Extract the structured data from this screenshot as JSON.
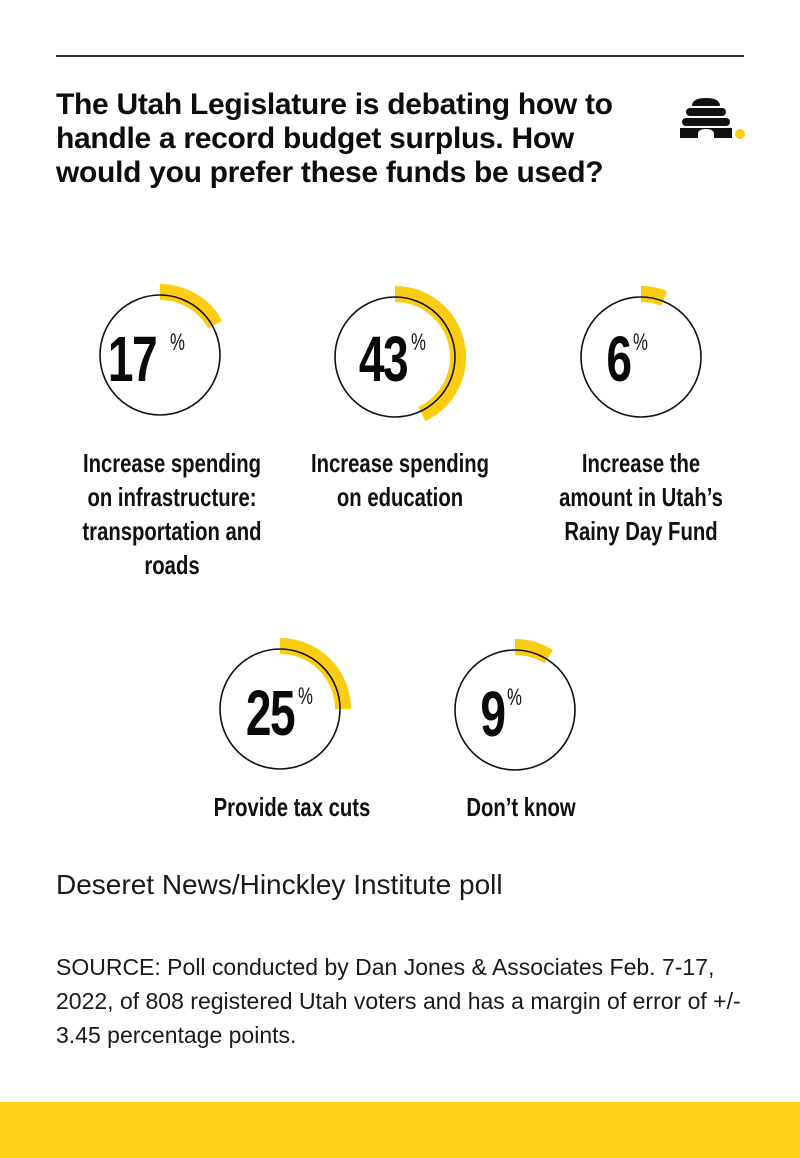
{
  "header": {
    "title": "The Utah Legislature is debating how to handle a record budget surplus. How would you prefer these funds be used?",
    "logo_icon": "beehive-icon"
  },
  "colors": {
    "accent": "#FBCD12",
    "band": "#FCD116",
    "ring": "#111111",
    "rule": "#333333",
    "text": "#111111"
  },
  "items": [
    {
      "value": "17",
      "pct": "%",
      "label": "Increase spending\non infrastructure:\ntransportation and\nroads"
    },
    {
      "value": "43",
      "pct": "%",
      "label": "Increase spending\non education"
    },
    {
      "value": "6",
      "pct": "%",
      "label": "Increase the\namount in Utah’s\nRainy Day Fund"
    },
    {
      "value": "25",
      "pct": "%",
      "label": "Provide tax cuts"
    },
    {
      "value": "9",
      "pct": "%",
      "label": "Don’t know"
    }
  ],
  "footer": {
    "poll": "Deseret News/Hinckley Institute poll",
    "source": "SOURCE: Poll conducted by Dan Jones & Associates Feb. 7-17, 2022, of 808 registered Utah voters and has a margin of error of +/- 3.45 percentage points."
  },
  "chart_data": {
    "type": "pie",
    "title": "The Utah Legislature is debating how to handle a record budget surplus. How would you prefer these funds be used?",
    "subtitle": "Deseret News/Hinckley Institute poll",
    "categories": [
      "Increase spending on infrastructure: transportation and roads",
      "Increase spending on education",
      "Increase the amount in Utah’s Rainy Day Fund",
      "Provide tax cuts",
      "Don’t know"
    ],
    "values": [
      17,
      43,
      6,
      25,
      9
    ],
    "unit": "%",
    "style": "individual progress rings (one donut per category)",
    "annotations": [
      "SOURCE: Poll conducted by Dan Jones & Associates Feb. 7-17, 2022, of 808 registered Utah voters and has a margin of error of +/- 3.45 percentage points."
    ],
    "legend": "none (labels beneath each ring)"
  }
}
